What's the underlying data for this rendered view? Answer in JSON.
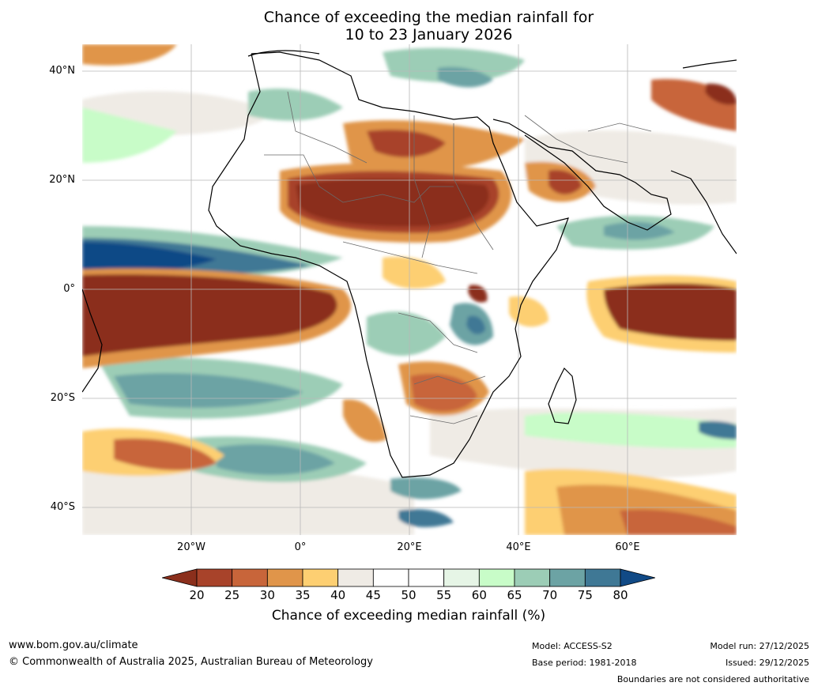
{
  "title": {
    "line1": "Chance of exceeding the median rainfall for",
    "line2": "10 to 23 January 2026"
  },
  "axes": {
    "lat_labels": [
      "40°N",
      "20°N",
      "0°",
      "20°S",
      "40°S"
    ],
    "lon_labels": [
      "20°W",
      "0°",
      "20°E",
      "40°E",
      "60°E"
    ]
  },
  "colorbar": {
    "label": "Chance of exceeding median rainfall (%)",
    "ticks": [
      "20",
      "25",
      "30",
      "35",
      "40",
      "45",
      "50",
      "55",
      "60",
      "65",
      "70",
      "75",
      "80"
    ],
    "colors": [
      "#8b2f1c",
      "#a8432a",
      "#c8653a",
      "#e0954a",
      "#fdcf72",
      "#efebe5",
      "#ffffff",
      "#ffffff",
      "#e6f5e6",
      "#c8fcc8",
      "#9ccdb6",
      "#6ca3a4",
      "#3f7895",
      "#114a86"
    ]
  },
  "footer": {
    "website": "www.bom.gov.au/climate",
    "copyright": "© Commonwealth of Australia 2025, Australian Bureau of Meteorology",
    "model": "Model: ACCESS-S2",
    "base_period": "Base period: 1981-2018",
    "model_run": "Model run: 27/12/2025",
    "issued": "Issued: 29/12/2025",
    "boundaries": "Boundaries are not considered authoritative"
  }
}
